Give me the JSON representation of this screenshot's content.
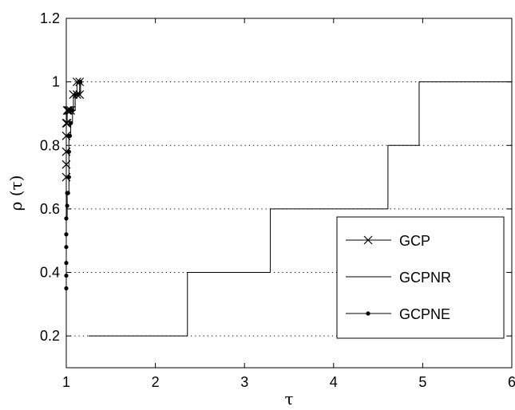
{
  "chart_data": {
    "type": "line",
    "title": "",
    "xlabel": "τ",
    "ylabel": "ρ (τ)",
    "xlim": [
      1,
      6
    ],
    "ylim": [
      0.1,
      1.2
    ],
    "xticks": [
      1,
      2,
      3,
      4,
      5,
      6
    ],
    "xtick_labels": [
      "1",
      "2",
      "3",
      "4",
      "5",
      "6"
    ],
    "yticks": [
      0.2,
      0.4,
      0.6,
      0.8,
      1.0,
      1.2
    ],
    "ytick_labels": [
      "0.2",
      "0.4",
      "0.6",
      "0.8",
      "1",
      "1.2"
    ],
    "grid": "horizontal-dotted",
    "legend_position": "center-right",
    "series": [
      {
        "name": "GCP",
        "style": "step",
        "marker": "x",
        "x": [
          1.0,
          1.0,
          1.0,
          1.0,
          1.0,
          1.01,
          1.01,
          1.02,
          1.03,
          1.05,
          1.08,
          1.12,
          1.12,
          1.15,
          1.15
        ],
        "y": [
          0.7,
          0.74,
          0.78,
          0.83,
          0.87,
          0.87,
          0.91,
          0.91,
          0.91,
          0.91,
          0.96,
          0.96,
          1.0,
          0.96,
          1.0
        ]
      },
      {
        "name": "GCPNR",
        "style": "step",
        "marker": "none",
        "x": [
          1.25,
          2.36,
          3.29,
          4.61,
          4.96,
          6.0
        ],
        "y": [
          0.2,
          0.4,
          0.6,
          0.8,
          1.0,
          1.0
        ]
      },
      {
        "name": "GCPNE",
        "style": "step",
        "marker": "dot",
        "x": [
          1.0,
          1.0,
          1.0,
          1.0,
          1.0,
          1.0,
          1.01,
          1.01,
          1.02,
          1.03,
          1.03,
          1.03,
          1.04,
          1.05,
          1.07,
          1.1,
          1.13,
          1.16
        ],
        "y": [
          0.35,
          0.39,
          0.43,
          0.48,
          0.52,
          0.57,
          0.61,
          0.65,
          0.65,
          0.7,
          0.78,
          0.83,
          0.83,
          0.87,
          0.91,
          0.96,
          0.96,
          1.0
        ]
      }
    ]
  }
}
